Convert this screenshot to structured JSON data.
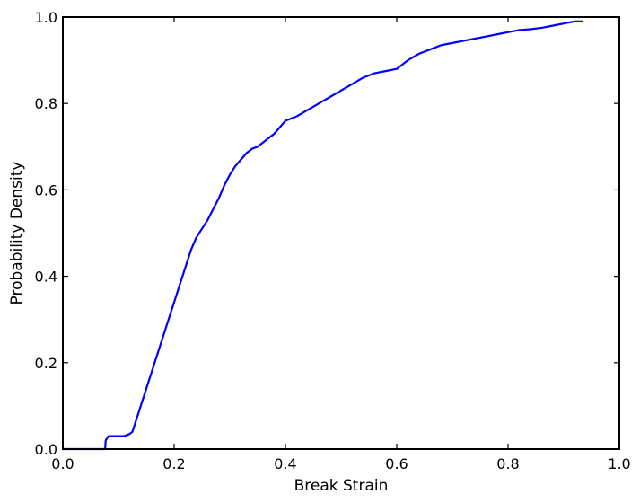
{
  "chart_data": {
    "type": "line",
    "title": "",
    "xlabel": "Break Strain",
    "ylabel": "Probability Density",
    "xlim": [
      0.0,
      1.0
    ],
    "ylim": [
      0.0,
      1.0
    ],
    "xticks": [
      "0.0",
      "0.2",
      "0.4",
      "0.6",
      "0.8",
      "1.0"
    ],
    "yticks": [
      "0.0",
      "0.2",
      "0.4",
      "0.6",
      "0.8",
      "1.0"
    ],
    "grid": false,
    "legend": "none",
    "series": [
      {
        "color": "#0000ff",
        "x": [
          0.0,
          0.076,
          0.077,
          0.082,
          0.09,
          0.1,
          0.11,
          0.12,
          0.125,
          0.13,
          0.14,
          0.15,
          0.16,
          0.17,
          0.18,
          0.19,
          0.2,
          0.21,
          0.22,
          0.23,
          0.24,
          0.25,
          0.26,
          0.27,
          0.28,
          0.29,
          0.3,
          0.31,
          0.32,
          0.33,
          0.34,
          0.35,
          0.36,
          0.37,
          0.38,
          0.39,
          0.4,
          0.42,
          0.44,
          0.46,
          0.48,
          0.5,
          0.52,
          0.54,
          0.56,
          0.58,
          0.6,
          0.62,
          0.64,
          0.66,
          0.68,
          0.7,
          0.72,
          0.74,
          0.76,
          0.78,
          0.8,
          0.82,
          0.84,
          0.86,
          0.88,
          0.9,
          0.92,
          0.935
        ],
        "y": [
          0.0,
          0.0,
          0.02,
          0.03,
          0.03,
          0.03,
          0.03,
          0.035,
          0.04,
          0.06,
          0.1,
          0.14,
          0.18,
          0.22,
          0.26,
          0.3,
          0.34,
          0.38,
          0.42,
          0.46,
          0.49,
          0.51,
          0.53,
          0.555,
          0.58,
          0.61,
          0.635,
          0.655,
          0.67,
          0.685,
          0.695,
          0.7,
          0.71,
          0.72,
          0.73,
          0.745,
          0.76,
          0.77,
          0.785,
          0.8,
          0.815,
          0.83,
          0.845,
          0.86,
          0.87,
          0.875,
          0.88,
          0.9,
          0.915,
          0.925,
          0.935,
          0.94,
          0.945,
          0.95,
          0.955,
          0.96,
          0.965,
          0.97,
          0.972,
          0.975,
          0.98,
          0.985,
          0.99,
          0.99
        ]
      }
    ]
  }
}
